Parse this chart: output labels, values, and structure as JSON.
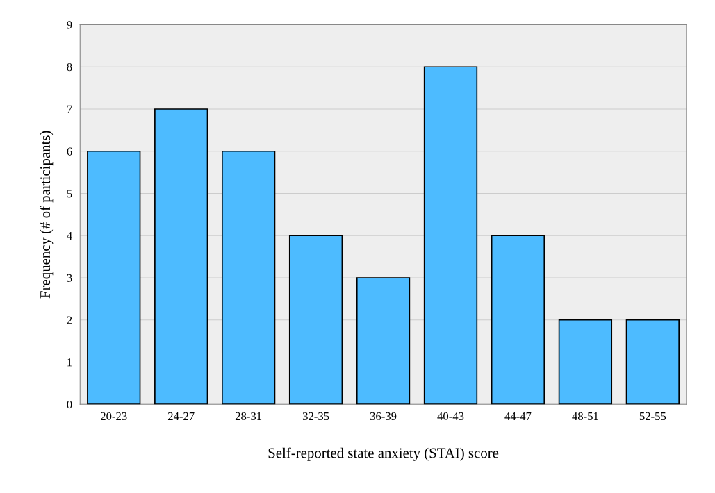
{
  "chart_data": {
    "type": "bar",
    "xlabel": "Self-reported state anxiety (STAI) score",
    "ylabel": "Frequency (# of participants)",
    "categories": [
      "20-23",
      "24-27",
      "28-31",
      "32-35",
      "36-39",
      "40-43",
      "44-47",
      "48-51",
      "52-55"
    ],
    "values": [
      6,
      7,
      6,
      4,
      3,
      8,
      4,
      2,
      2
    ],
    "color": "#4dbbff",
    "ylim": [
      0,
      9
    ],
    "yticks": [
      0,
      1,
      2,
      3,
      4,
      5,
      6,
      7,
      8,
      9
    ],
    "grid": "y"
  }
}
